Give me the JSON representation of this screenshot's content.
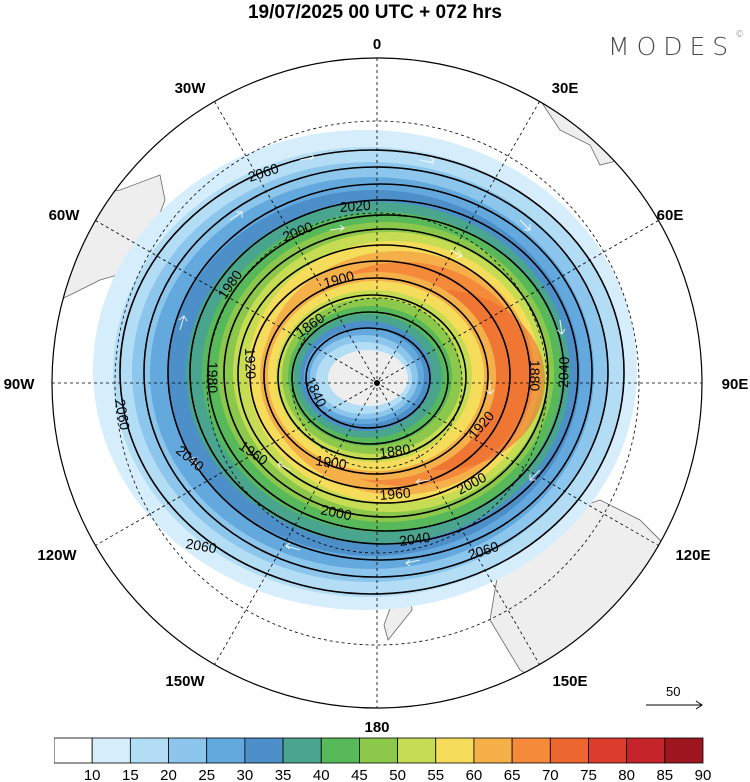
{
  "header": {
    "title": "19/07/2025  00 UTC  + 072 hrs",
    "brand": "MODES",
    "brand_mark": "©"
  },
  "map": {
    "projection": "south-polar-stereographic",
    "longitude_labels": [
      {
        "text": "0",
        "lon": 0
      },
      {
        "text": "30E",
        "lon": 30
      },
      {
        "text": "60E",
        "lon": 60
      },
      {
        "text": "90E",
        "lon": 90
      },
      {
        "text": "120E",
        "lon": 120
      },
      {
        "text": "150E",
        "lon": 150
      },
      {
        "text": "180",
        "lon": 180
      },
      {
        "text": "150W",
        "lon": -150
      },
      {
        "text": "120W",
        "lon": -120
      },
      {
        "text": "90W",
        "lon": -90
      },
      {
        "text": "60W",
        "lon": -60
      },
      {
        "text": "30W",
        "lon": -30
      }
    ],
    "contour_labels": [
      "2060",
      "2020",
      "2000",
      "1980",
      "1900",
      "1860",
      "1840",
      "1920",
      "1980",
      "1880",
      "1920",
      "1900",
      "1960",
      "1960",
      "2000",
      "2000",
      "2040",
      "2040",
      "2060",
      "2060",
      "2040",
      "2060",
      "1880"
    ],
    "contour_levels": [
      1840,
      1860,
      1880,
      1900,
      1920,
      1940,
      1960,
      1980,
      2000,
      2020,
      2040,
      2060
    ],
    "vector_reference": {
      "value": "50",
      "icon": "arrow-right-icon"
    }
  },
  "colorbar": {
    "tick_labels": [
      "10",
      "15",
      "20",
      "25",
      "30",
      "35",
      "40",
      "45",
      "50",
      "55",
      "60",
      "65",
      "70",
      "75",
      "80",
      "85",
      "90"
    ],
    "colors": [
      "#ffffff",
      "#d6eefb",
      "#b3ddf5",
      "#8cc6ec",
      "#64a9de",
      "#4d8fc9",
      "#4aa58e",
      "#58b95a",
      "#8cc84b",
      "#c6dc53",
      "#f5dc5a",
      "#f6b04a",
      "#f48a3a",
      "#ec6630",
      "#dc3c2c",
      "#c4242a",
      "#9e1620"
    ]
  }
}
